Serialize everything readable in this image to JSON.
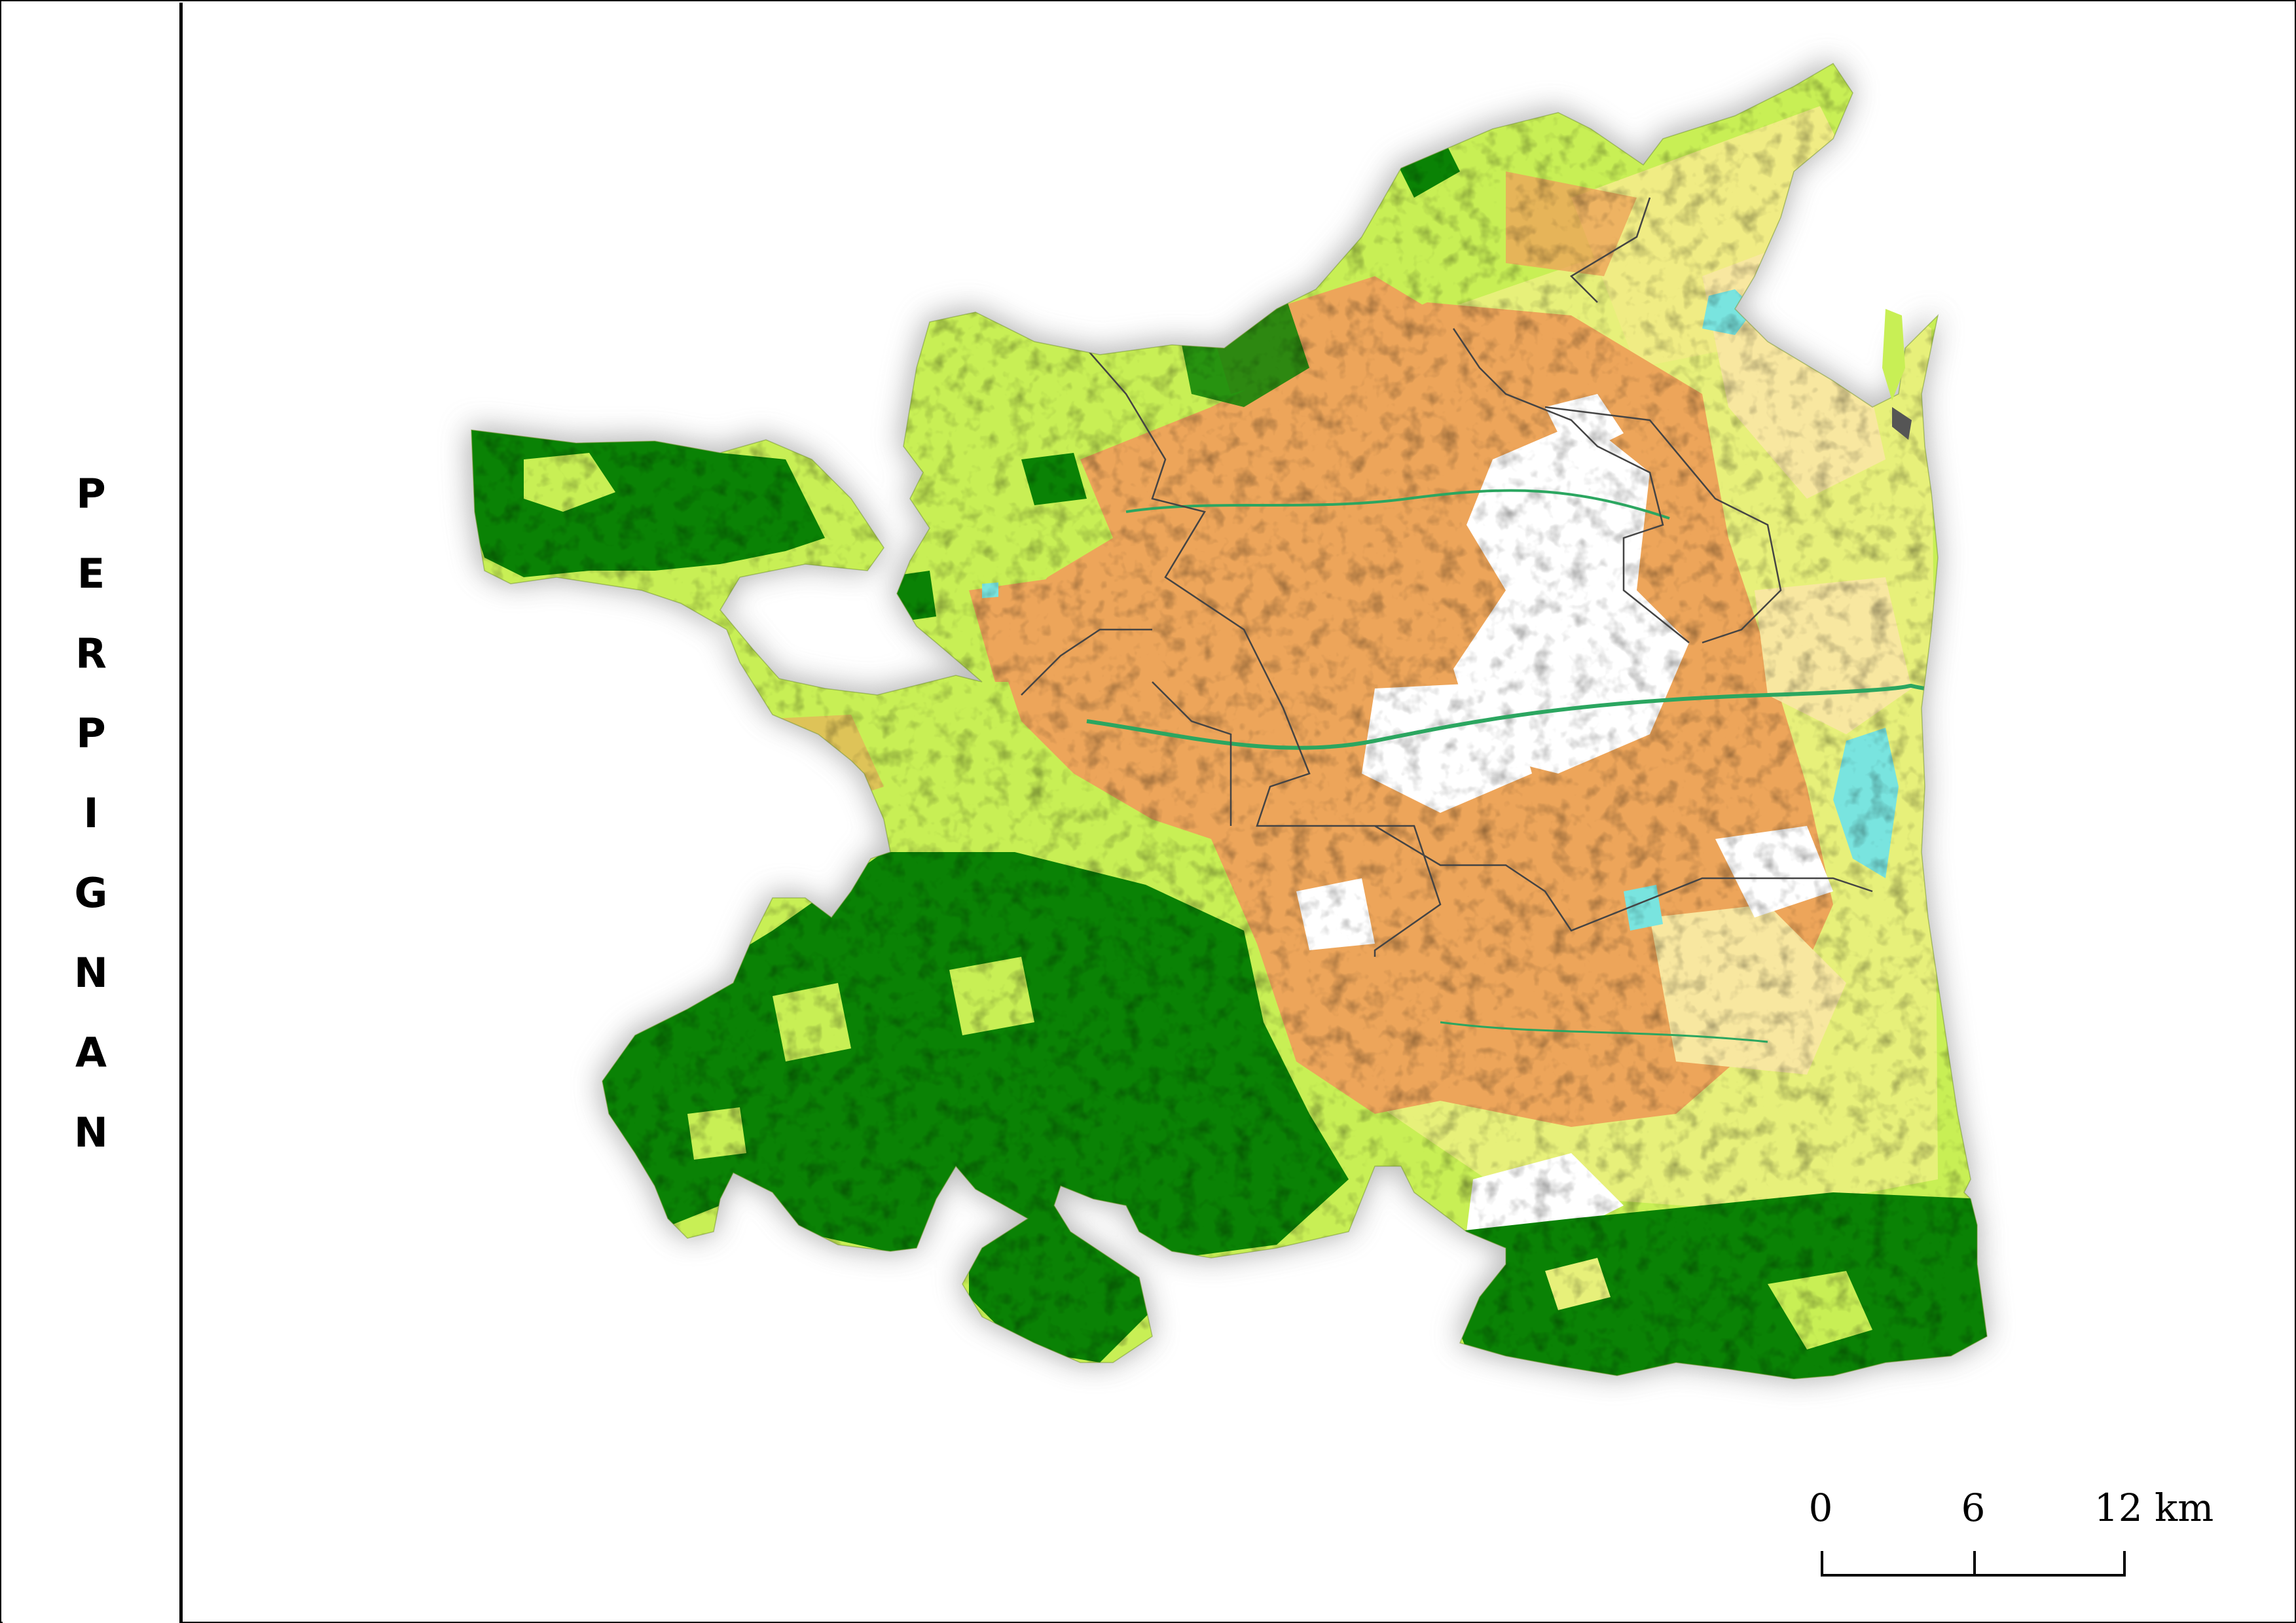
{
  "title": {
    "letters": [
      "P",
      "E",
      "R",
      "P",
      "I",
      "G",
      "N",
      "A",
      "N"
    ]
  },
  "scale": {
    "labels": [
      "0",
      "6",
      "12 km"
    ]
  },
  "legend_colors": {
    "forest": "#0a8205",
    "agricultural_light": "#c8ef55",
    "agricultural_yellow": "#e7f07a",
    "urban_orange": "#eda55a",
    "vineyard_pale": "#f8e7a0",
    "water": "#79e4df",
    "bare_white": "#ffffff",
    "boundary": "#444444"
  }
}
